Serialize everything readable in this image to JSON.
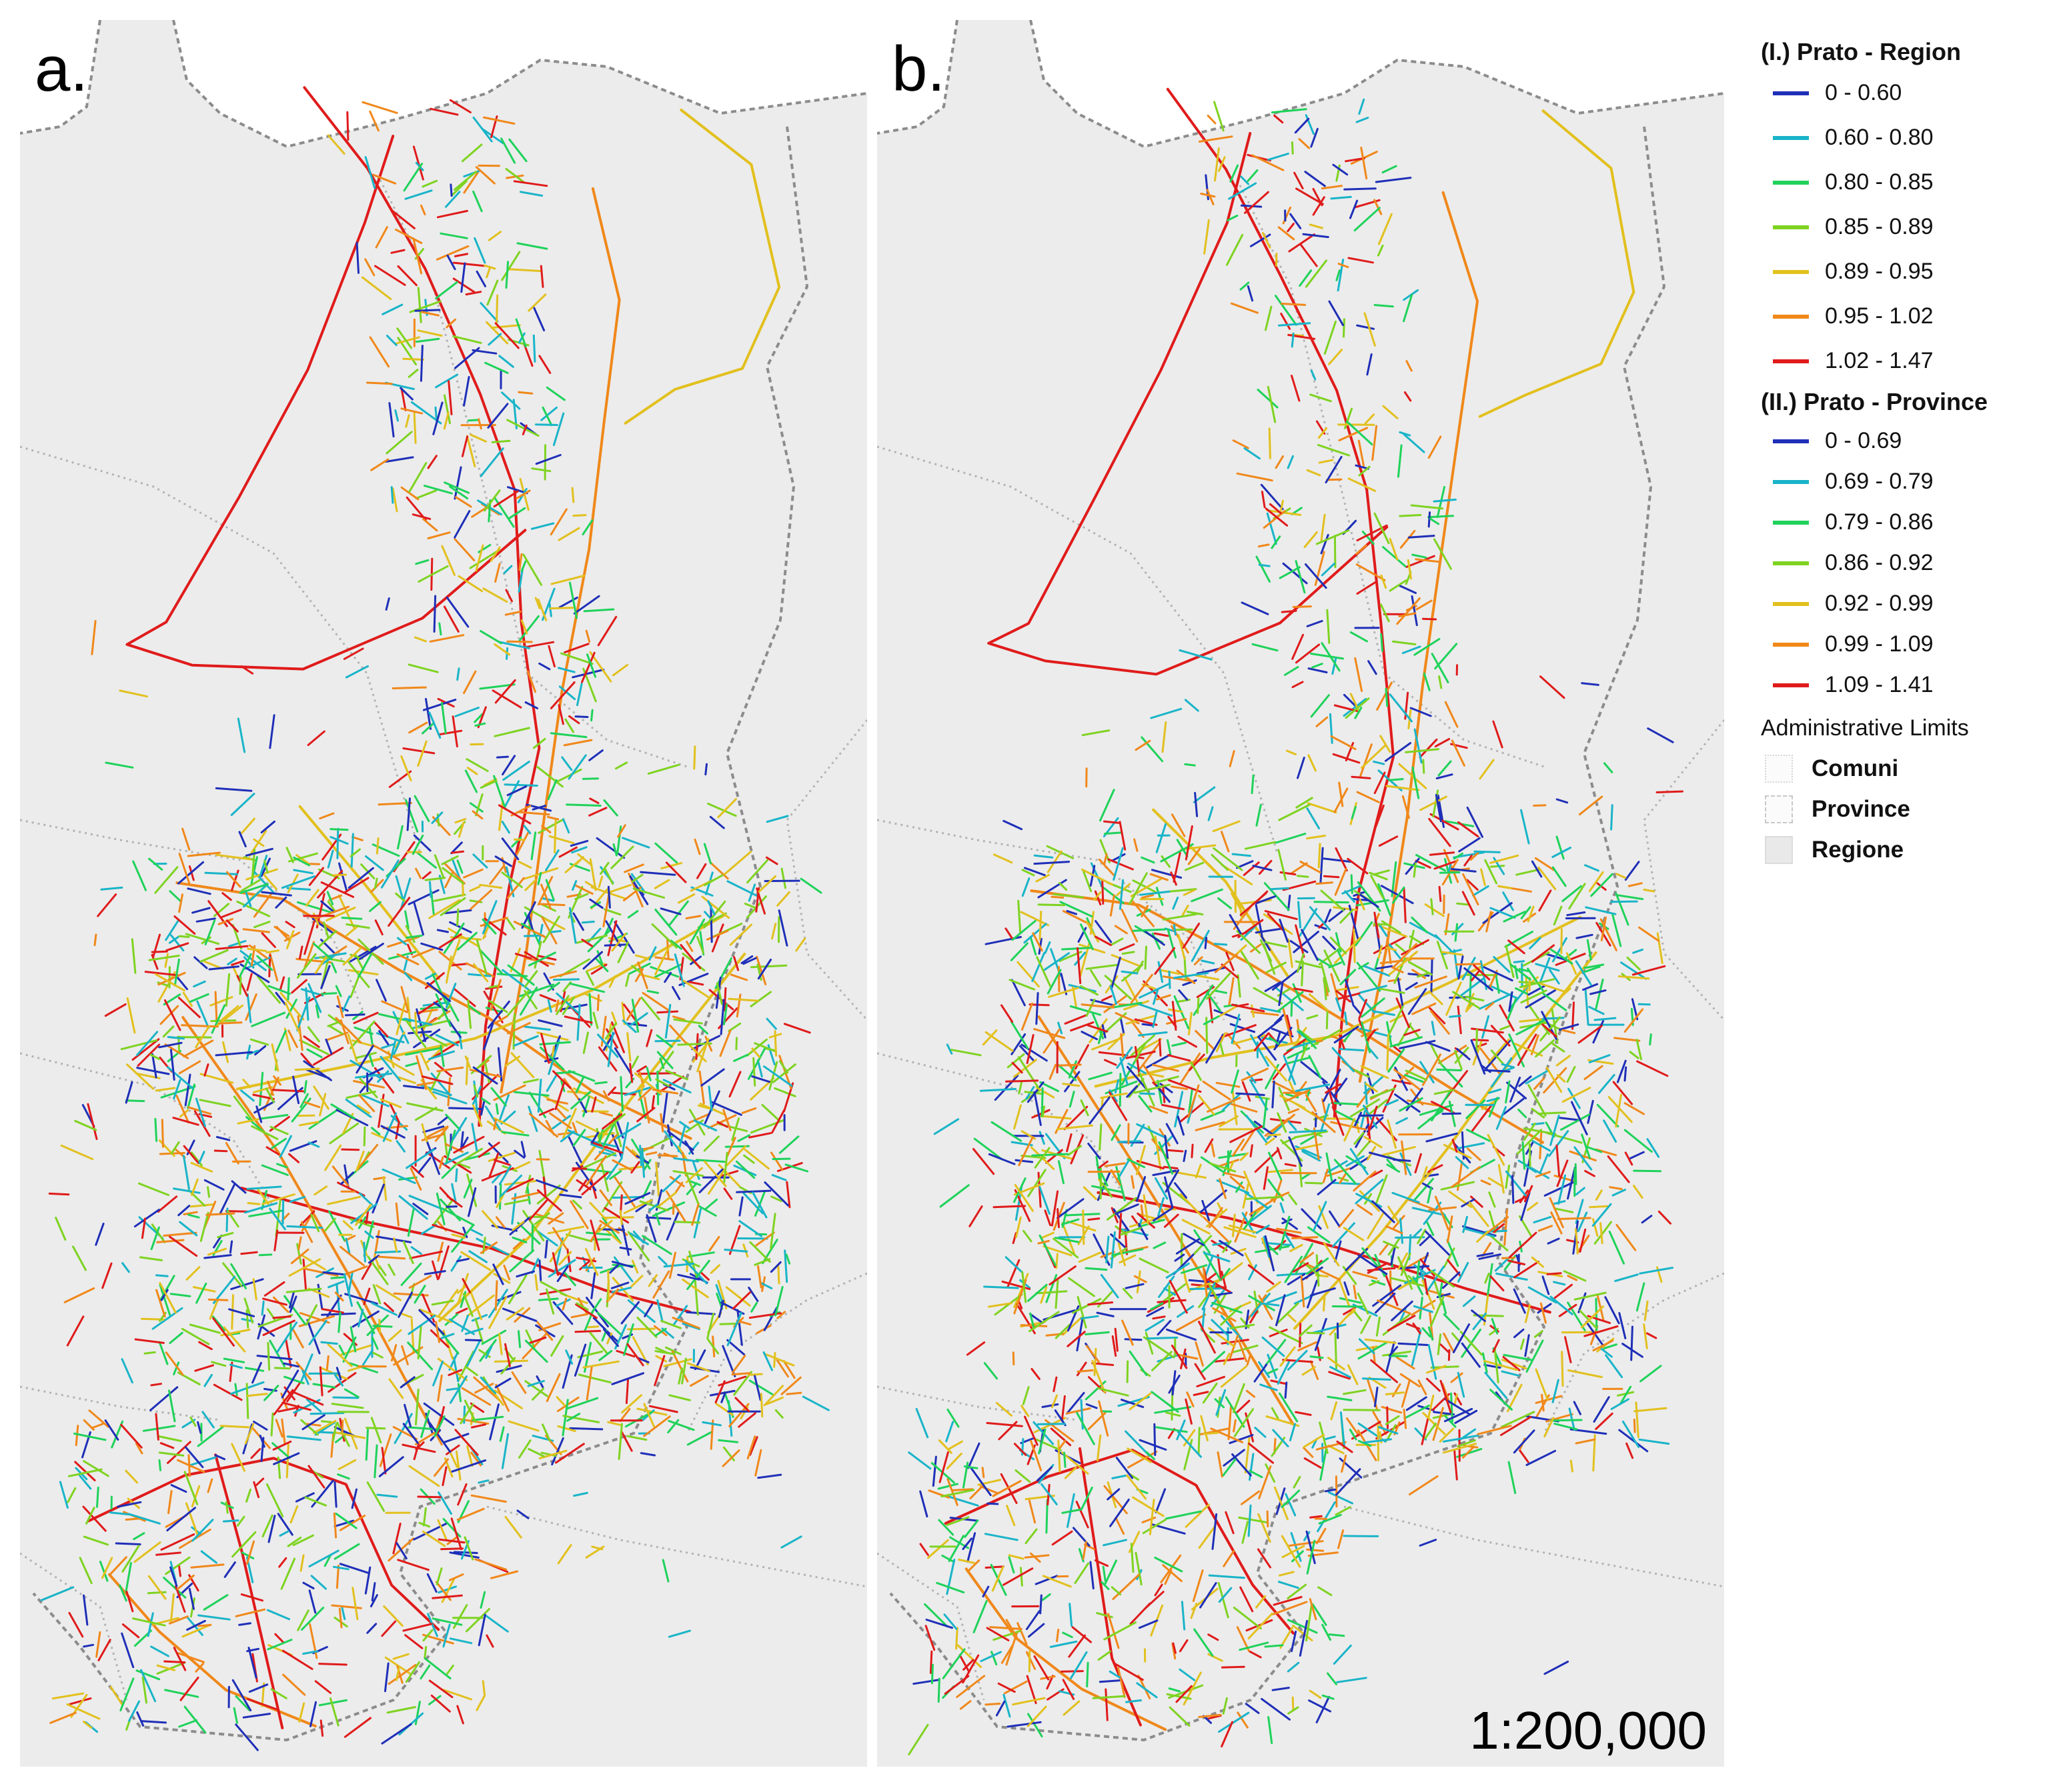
{
  "panels": [
    {
      "label": "a."
    },
    {
      "label": "b."
    }
  ],
  "scale_text": "1:200,000",
  "legend": {
    "region_title": "(I.) Prato - Region",
    "region_classes": [
      {
        "label": "0 - 0.60",
        "color": "#1f2fb8"
      },
      {
        "label": "0.60 - 0.80",
        "color": "#19b4c8"
      },
      {
        "label": "0.80 - 0.85",
        "color": "#1fd25a"
      },
      {
        "label": "0.85 - 0.89",
        "color": "#7ed321"
      },
      {
        "label": "0.89 - 0.95",
        "color": "#e2c01e"
      },
      {
        "label": "0.95 - 1.02",
        "color": "#f0881a"
      },
      {
        "label": "1.02 - 1.47",
        "color": "#e01b1b"
      }
    ],
    "province_title": "(II.) Prato - Province",
    "province_classes": [
      {
        "label": "0 - 0.69",
        "color": "#1f2fb8"
      },
      {
        "label": "0.69 - 0.79",
        "color": "#19b4c8"
      },
      {
        "label": "0.79 - 0.86",
        "color": "#1fd25a"
      },
      {
        "label": "0.86 - 0.92",
        "color": "#7ed321"
      },
      {
        "label": "0.92 - 0.99",
        "color": "#e2c01e"
      },
      {
        "label": "0.99 - 1.09",
        "color": "#f0881a"
      },
      {
        "label": "1.09 - 1.41",
        "color": "#e01b1b"
      }
    ],
    "admin_title": "Administrative Limits",
    "admin_items": [
      {
        "label": "Comuni"
      },
      {
        "label": "Province"
      },
      {
        "label": "Regione"
      }
    ]
  }
}
